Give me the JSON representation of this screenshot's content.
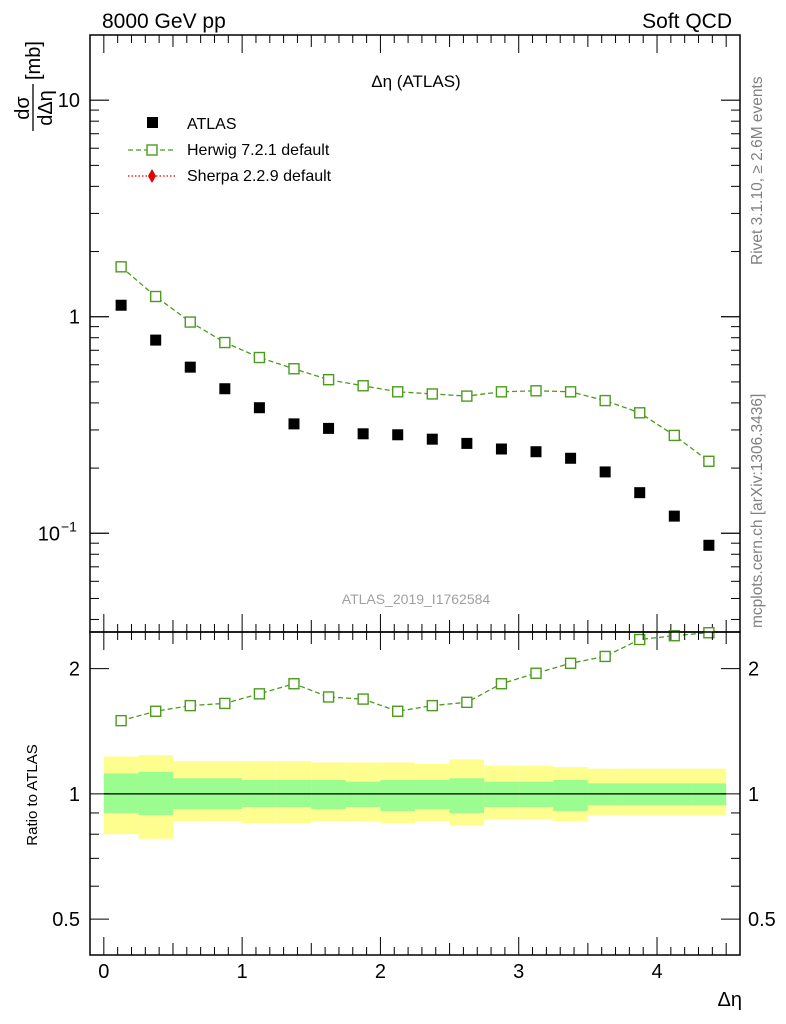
{
  "header": {
    "left": "8000 GeV pp",
    "right": "Soft QCD"
  },
  "side_labels": {
    "rivet": "Rivet 3.1.10, ≥ 2.6M events",
    "mcplots": "mcplots.cern.ch [arXiv:1306.3436]"
  },
  "chart_data": [
    {
      "type": "scatter",
      "panel": "main",
      "title": "Δη (ATLAS)",
      "xlabel": "Δη",
      "ylabel_parts": {
        "num": "dσ",
        "den": "dΔη",
        "unit": "[mb]"
      },
      "y_scale": "log",
      "xlim": [
        -0.1,
        4.6
      ],
      "ylim": [
        0.035,
        20
      ],
      "y_ticks": [
        {
          "value": 0.1,
          "label": "10",
          "exponent": "−1"
        },
        {
          "value": 1,
          "label": "1",
          "exponent": ""
        },
        {
          "value": 10,
          "label": "10",
          "exponent": ""
        }
      ],
      "watermark": "ATLAS_2019_I1762584",
      "legend_position": "top-left",
      "x": [
        0.125,
        0.375,
        0.625,
        0.875,
        1.125,
        1.375,
        1.625,
        1.875,
        2.125,
        2.375,
        2.625,
        2.875,
        3.125,
        3.375,
        3.625,
        3.875,
        4.125,
        4.375
      ],
      "series": [
        {
          "name": "ATLAS",
          "marker": "filled-square",
          "color": "#000000",
          "values": [
            1.13,
            0.78,
            0.585,
            0.465,
            0.38,
            0.32,
            0.305,
            0.288,
            0.285,
            0.272,
            0.26,
            0.245,
            0.238,
            0.222,
            0.192,
            0.154,
            0.12,
            0.088
          ]
        },
        {
          "name": "Herwig 7.2.1 default",
          "marker": "open-square",
          "line": "dashed",
          "color": "#4c9b1c",
          "values": [
            1.7,
            1.24,
            0.945,
            0.76,
            0.648,
            0.575,
            0.512,
            0.48,
            0.45,
            0.44,
            0.43,
            0.45,
            0.455,
            0.45,
            0.41,
            0.36,
            0.283,
            0.215
          ]
        },
        {
          "name": "Sherpa 2.2.9 default",
          "marker": "filled-diamond",
          "line": "dotted",
          "color": "#e00000",
          "values": []
        }
      ]
    },
    {
      "type": "scatter",
      "panel": "ratio",
      "ylabel": "Ratio to ATLAS",
      "xlabel": "Δη",
      "y_scale": "log",
      "xlim": [
        -0.1,
        4.6
      ],
      "ylim": [
        0.41,
        2.45
      ],
      "x_ticks": [
        0,
        1,
        2,
        3,
        4
      ],
      "y_ticks": [
        0.5,
        1,
        2
      ],
      "reference_line": 1,
      "x": [
        0.125,
        0.375,
        0.625,
        0.875,
        1.125,
        1.375,
        1.625,
        1.875,
        2.125,
        2.375,
        2.625,
        2.875,
        3.125,
        3.375,
        3.625,
        3.875,
        4.125,
        4.375
      ],
      "bands": {
        "bin_edges": [
          0,
          0.25,
          0.5,
          0.75,
          1.0,
          1.25,
          1.5,
          1.75,
          2.0,
          2.25,
          2.5,
          2.75,
          3.0,
          3.25,
          3.5,
          3.75,
          4.0,
          4.25,
          4.5
        ],
        "stat_low": [
          0.9,
          0.89,
          0.92,
          0.92,
          0.93,
          0.93,
          0.92,
          0.93,
          0.91,
          0.92,
          0.9,
          0.93,
          0.93,
          0.91,
          0.94,
          0.94,
          0.94,
          0.94
        ],
        "stat_high": [
          1.12,
          1.13,
          1.09,
          1.09,
          1.08,
          1.08,
          1.08,
          1.07,
          1.08,
          1.08,
          1.09,
          1.07,
          1.07,
          1.08,
          1.06,
          1.06,
          1.06,
          1.06
        ],
        "total_low": [
          0.8,
          0.78,
          0.86,
          0.86,
          0.85,
          0.85,
          0.86,
          0.86,
          0.85,
          0.86,
          0.84,
          0.87,
          0.87,
          0.86,
          0.89,
          0.89,
          0.89,
          0.89
        ],
        "total_high": [
          1.23,
          1.24,
          1.2,
          1.2,
          1.2,
          1.2,
          1.19,
          1.19,
          1.19,
          1.18,
          1.21,
          1.17,
          1.17,
          1.16,
          1.15,
          1.15,
          1.15,
          1.15
        ],
        "stat_color": "#9bfc8f",
        "total_color": "#fefe8e"
      },
      "series": [
        {
          "name": "Herwig 7.2.1 default",
          "marker": "open-square",
          "line": "dashed",
          "color": "#4c9b1c",
          "values": [
            1.5,
            1.58,
            1.63,
            1.65,
            1.74,
            1.84,
            1.71,
            1.69,
            1.58,
            1.63,
            1.66,
            1.84,
            1.95,
            2.06,
            2.14,
            2.35,
            2.4,
            2.44
          ]
        }
      ]
    }
  ]
}
